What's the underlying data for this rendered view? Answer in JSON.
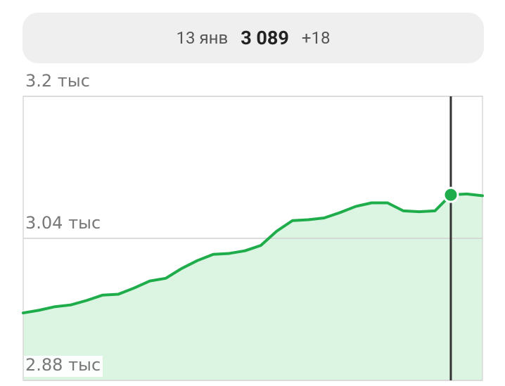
{
  "chart_data": {
    "type": "line",
    "categories": [
      null,
      null,
      null,
      null,
      null,
      null,
      null,
      null,
      null,
      null,
      null,
      null,
      null,
      null,
      null,
      null,
      null,
      null,
      null,
      null,
      null,
      null,
      null,
      null,
      null,
      null,
      null,
      "13 янв",
      null,
      null
    ],
    "series": [
      {
        "color": "#1fad4b",
        "values": [
          2956,
          2959,
          2963,
          2965,
          2970,
          2976,
          2977,
          2984,
          2992,
          2995,
          3006,
          3015,
          3022,
          3023,
          3026,
          3032,
          3048,
          3060,
          3061,
          3063,
          3069,
          3076,
          3080,
          3080,
          3071,
          3070,
          3071,
          3089,
          3090,
          3088
        ]
      }
    ],
    "highlight": {
      "index": 27,
      "label": "3 089",
      "change": {
        "value": 18,
        "label": "+18"
      }
    },
    "ylim": [
      2880,
      3200
    ],
    "yticks": [
      {
        "value": 2880,
        "label": "2.88 тыс"
      },
      {
        "value": 3040,
        "label": "3.04 тыс"
      },
      {
        "value": 3200,
        "label": "3.2 тыс"
      }
    ],
    "grid": true
  }
}
